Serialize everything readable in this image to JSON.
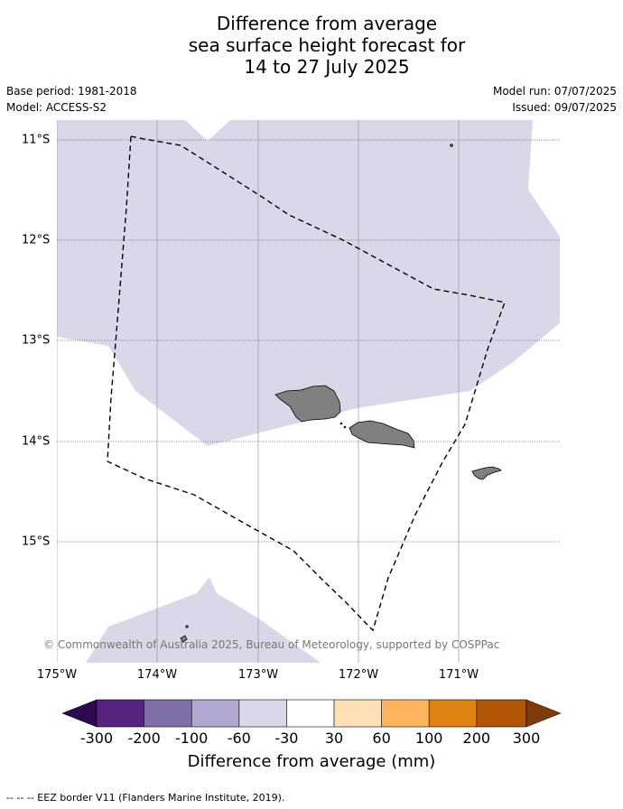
{
  "title_lines": [
    "Difference from average",
    "sea surface height forecast for",
    "14 to 27 July 2025"
  ],
  "meta": {
    "base_period": "Base period: 1981-2018",
    "model": "Model: ACCESS-S2",
    "model_run": "Model run: 07/07/2025",
    "issued": "Issued: 09/07/2025"
  },
  "map": {
    "lon_ticks": [
      "175°W",
      "174°W",
      "173°W",
      "172°W",
      "171°W"
    ],
    "lat_ticks": [
      "11°S",
      "12°S",
      "13°S",
      "14°S",
      "15°S"
    ],
    "land_color": "#808080",
    "sea_minus30_60_color": "#d8d8e9",
    "copyright": "© Commonwealth of Australia 2025, Bureau of Meteorology, supported by COSPPac",
    "eez_style": "dashed black line"
  },
  "colorbar": {
    "label": "Difference from average (mm)",
    "tick_labels": [
      "-300",
      "-200",
      "-100",
      "-60",
      "-30",
      "30",
      "60",
      "100",
      "200",
      "300"
    ],
    "colors": [
      "#2d0a4f",
      "#56247f",
      "#7f6fa9",
      "#b0a8d0",
      "#d8d8e9",
      "#ffffff",
      "#fde0b6",
      "#fbb45c",
      "#e0820f",
      "#b15506",
      "#7f3b09"
    ]
  },
  "footer": "--  --  -- EEZ border V11 (Flanders Marine Institute, 2019)."
}
